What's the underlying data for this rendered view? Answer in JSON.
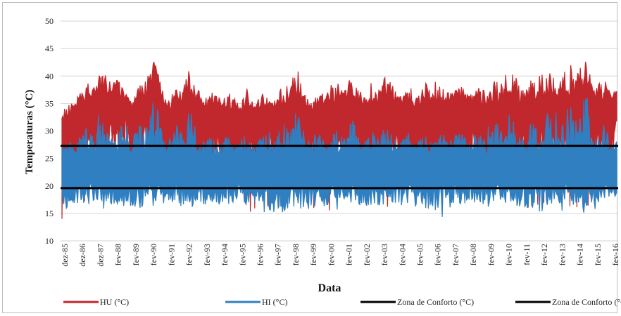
{
  "chart_data": {
    "type": "area",
    "title": "",
    "xlabel": "Data",
    "ylabel": "Temperaturas (°C)",
    "ylim": [
      10,
      50
    ],
    "yticks": [
      10,
      15,
      20,
      25,
      30,
      35,
      40,
      45,
      50
    ],
    "categories": [
      "dez-85",
      "dez-86",
      "dez-87",
      "fev-88",
      "fev-89",
      "fev-90",
      "fev-91",
      "fev-92",
      "fev-93",
      "fev-94",
      "fev-95",
      "fev-96",
      "fev-97",
      "fev-98",
      "fev-99",
      "fev-00",
      "fev-01",
      "fev-02",
      "fev-03",
      "fev-04",
      "fev-05",
      "fev-06",
      "fev-07",
      "fev-08",
      "fev-09",
      "fev-10",
      "fev-11",
      "fev-12",
      "fev-13",
      "fev-14",
      "fev-15",
      "fev-16"
    ],
    "series": [
      {
        "name": "HU (°C)",
        "color": "#c0282d",
        "max": [
          33.5,
          38,
          41,
          40,
          35.5,
          44,
          36,
          43,
          38,
          37.5,
          38,
          37,
          36.5,
          42,
          36,
          39.5,
          40,
          38,
          41,
          37,
          38.5,
          39,
          39,
          38,
          39,
          40.5,
          39,
          40.5,
          41.5,
          44.5,
          39.5,
          38
        ],
        "min": [
          14,
          17,
          18,
          19.5,
          17.5,
          18,
          16,
          17,
          15,
          16.5,
          14,
          16.5,
          16,
          17,
          16,
          15.5,
          17,
          16.5,
          16,
          17,
          15.5,
          15.5,
          17,
          17,
          16,
          17.5,
          16,
          17,
          16.5,
          16,
          17,
          18
        ]
      },
      {
        "name": "HI (°C)",
        "color": "#2f7fc1",
        "max": [
          28,
          30.5,
          33,
          31,
          31,
          37,
          29.5,
          35,
          29.5,
          29,
          29.5,
          29.5,
          30,
          35,
          30,
          30,
          32.5,
          30,
          32.5,
          29.5,
          30,
          31,
          31,
          30,
          31,
          33,
          31,
          33,
          33.5,
          38.5,
          31.5,
          30
        ],
        "min": [
          14.5,
          15.5,
          14.5,
          15.5,
          15,
          15,
          16,
          15,
          15.5,
          16,
          15.5,
          16,
          13.5,
          15,
          14.5,
          15.5,
          16,
          15.5,
          15.5,
          15.5,
          15,
          14,
          15.5,
          16,
          15,
          15.5,
          15,
          15.5,
          15.5,
          15,
          16,
          17.5
        ]
      },
      {
        "name": "Zona de Conforto (°C)",
        "color": "#000000",
        "value": 27.3
      },
      {
        "name": "Zona de Conforto (°C)",
        "color": "#000000",
        "value": 19.6
      }
    ],
    "legend_position": "bottom",
    "grid": true
  }
}
